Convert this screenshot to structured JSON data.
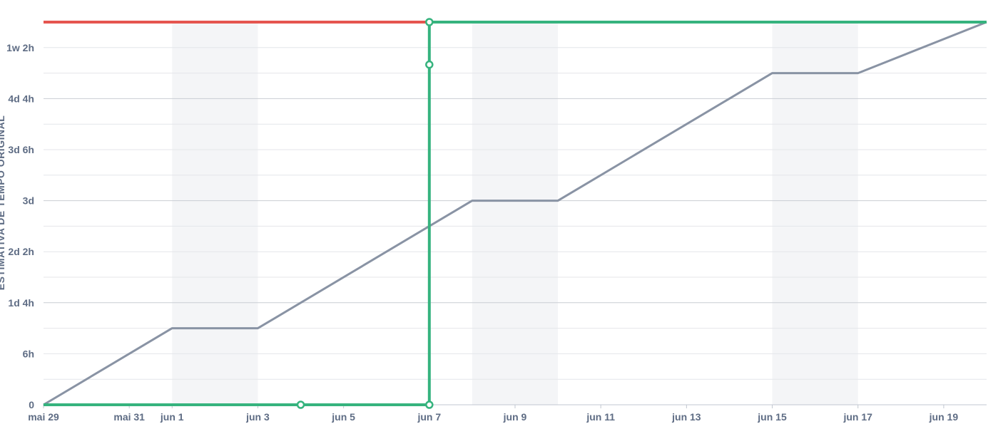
{
  "chart_data": {
    "type": "line",
    "ylabel": "ESTIMATIVA DE TEMPO ORIGINAL",
    "x_tick_labels": [
      "mai 29",
      "mai 31",
      "jun 1",
      "jun 3",
      "jun 5",
      "jun 7",
      "jun 9",
      "jun 11",
      "jun 13",
      "jun 15",
      "jun 17",
      "jun 19"
    ],
    "y_tick_labels": [
      "0",
      "6h",
      "1d 4h",
      "2d 2h",
      "3d",
      "3d 6h",
      "4d 4h",
      "1w 2h"
    ],
    "y_unit": "hours",
    "y_tick_values": [
      0,
      6,
      12,
      18,
      24,
      30,
      36,
      42
    ],
    "xlim": [
      "2023-05-29",
      "2023-06-20"
    ],
    "ylim": [
      0,
      45
    ],
    "non_working_days": [
      [
        "2023-06-01",
        "2023-06-03"
      ],
      [
        "2023-06-08",
        "2023-06-10"
      ],
      [
        "2023-06-15",
        "2023-06-17"
      ]
    ],
    "series": [
      {
        "name": "",
        "color": "#8993a4",
        "style": "guideline",
        "points": [
          [
            "2023-05-29",
            0
          ],
          [
            "2023-06-01",
            9
          ],
          [
            "2023-06-03",
            9
          ],
          [
            "2023-06-08",
            24
          ],
          [
            "2023-06-10",
            24
          ],
          [
            "2023-06-15",
            39
          ],
          [
            "2023-06-17",
            39
          ],
          [
            "2023-06-20",
            45
          ]
        ]
      },
      {
        "name": "",
        "color": "#36b37e",
        "style": "scope-start",
        "points": [
          [
            "2023-05-29",
            0
          ],
          [
            "2023-06-04",
            0
          ],
          [
            "2023-06-07",
            0
          ]
        ],
        "markers": [
          [
            "2023-06-04",
            0
          ],
          [
            "2023-06-07",
            0
          ]
        ]
      },
      {
        "name": "",
        "color": "#36b37e",
        "style": "scope-jump",
        "points": [
          [
            "2023-06-07",
            0
          ],
          [
            "2023-06-07",
            40
          ],
          [
            "2023-06-07",
            45
          ],
          [
            "2023-06-20",
            45
          ]
        ],
        "markers": [
          [
            "2023-06-07",
            40
          ],
          [
            "2023-06-07",
            45
          ]
        ]
      },
      {
        "name": "",
        "color": "#e5554f",
        "style": "scope-line",
        "points": [
          [
            "2023-05-29",
            45
          ],
          [
            "2023-06-07",
            45
          ]
        ]
      }
    ]
  }
}
